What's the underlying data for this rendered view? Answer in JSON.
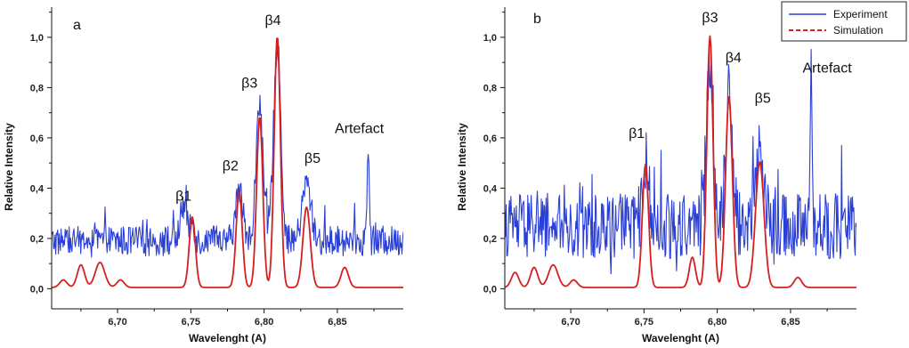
{
  "chart_data": [
    {
      "type": "line",
      "panel_label": "a",
      "xlabel": "Wavelenght (A)",
      "ylabel": "Relative Intensity",
      "xlim": [
        6.655,
        6.895
      ],
      "ylim": [
        -0.08,
        1.12
      ],
      "xticks": [
        6.7,
        6.75,
        6.8,
        6.85
      ],
      "xtick_labels": [
        "6,70",
        "6,75",
        "6,80",
        "6,85"
      ],
      "yticks": [
        0.0,
        0.2,
        0.4,
        0.6,
        0.8,
        1.0
      ],
      "ytick_labels": [
        "0,0",
        "0,2",
        "0,4",
        "0,6",
        "0,8",
        "1,0"
      ],
      "series": [
        {
          "name": "Experiment",
          "color": "#2a3fd6",
          "style": "solid",
          "peaks": [
            [
              6.745,
              0.14,
              0.0022
            ],
            [
              6.751,
              0.08,
              0.0016
            ],
            [
              6.783,
              0.2,
              0.0025
            ],
            [
              6.797,
              0.53,
              0.0025
            ],
            [
              6.809,
              0.79,
              0.0024
            ],
            [
              6.829,
              0.23,
              0.003
            ],
            [
              6.871,
              0.4,
              0.0007
            ]
          ],
          "baseline": 0.19,
          "noise": 0.06
        },
        {
          "name": "Simulation",
          "color": "#d42020",
          "style": "dashed",
          "peaks": [
            [
              6.675,
              0.09,
              0.0025
            ],
            [
              6.688,
              0.1,
              0.0032
            ],
            [
              6.702,
              0.03,
              0.0025
            ],
            [
              6.751,
              0.28,
              0.0021
            ],
            [
              6.783,
              0.38,
              0.0021
            ],
            [
              6.797,
              0.68,
              0.0021
            ],
            [
              6.809,
              1.0,
              0.0021
            ],
            [
              6.829,
              0.32,
              0.0025
            ],
            [
              6.855,
              0.08,
              0.0025
            ],
            [
              6.663,
              0.03,
              0.0025
            ]
          ],
          "baseline": 0.005
        }
      ],
      "annotations": [
        {
          "text": "β1",
          "x": 6.745,
          "y": 0.35
        },
        {
          "text": "β2",
          "x": 6.777,
          "y": 0.47
        },
        {
          "text": "β3",
          "x": 6.79,
          "y": 0.8
        },
        {
          "text": "β4",
          "x": 6.806,
          "y": 1.05
        },
        {
          "text": "β5",
          "x": 6.833,
          "y": 0.5
        },
        {
          "text": "Artefact",
          "x": 6.865,
          "y": 0.62
        }
      ]
    },
    {
      "type": "line",
      "panel_label": "b",
      "xlabel": "Wavelenght (A)",
      "ylabel": "Relative Intensity",
      "xlim": [
        6.655,
        6.895
      ],
      "ylim": [
        -0.08,
        1.12
      ],
      "xticks": [
        6.7,
        6.75,
        6.8,
        6.85
      ],
      "xtick_labels": [
        "6,70",
        "6,75",
        "6,80",
        "6,85"
      ],
      "yticks": [
        0.0,
        0.2,
        0.4,
        0.6,
        0.8,
        1.0
      ],
      "ytick_labels": [
        "0,0",
        "0,2",
        "0,4",
        "0,6",
        "0,8",
        "1,0"
      ],
      "series": [
        {
          "name": "Experiment",
          "color": "#2a3fd6",
          "style": "solid",
          "peaks": [
            [
              6.751,
              0.25,
              0.0022
            ],
            [
              6.795,
              0.68,
              0.0023
            ],
            [
              6.808,
              0.52,
              0.0025
            ],
            [
              6.829,
              0.28,
              0.003
            ],
            [
              6.864,
              0.62,
              0.0007
            ]
          ],
          "baseline": 0.25,
          "noise": 0.13
        },
        {
          "name": "Simulation",
          "color": "#d42020",
          "style": "dashed",
          "peaks": [
            [
              6.662,
              0.06,
              0.0025
            ],
            [
              6.675,
              0.08,
              0.0025
            ],
            [
              6.688,
              0.09,
              0.0032
            ],
            [
              6.702,
              0.03,
              0.0025
            ],
            [
              6.751,
              0.49,
              0.0021
            ],
            [
              6.783,
              0.12,
              0.0021
            ],
            [
              6.795,
              1.0,
              0.0021
            ],
            [
              6.808,
              0.76,
              0.0023
            ],
            [
              6.829,
              0.5,
              0.0029
            ],
            [
              6.855,
              0.04,
              0.0025
            ]
          ],
          "baseline": 0.005
        }
      ],
      "annotations": [
        {
          "text": "β1",
          "x": 6.745,
          "y": 0.6
        },
        {
          "text": "β3",
          "x": 6.795,
          "y": 1.06
        },
        {
          "text": "β4",
          "x": 6.811,
          "y": 0.9
        },
        {
          "text": "β5",
          "x": 6.831,
          "y": 0.74
        },
        {
          "text": "Artefact",
          "x": 6.875,
          "y": 0.86
        }
      ]
    }
  ],
  "legend": {
    "items": [
      {
        "label": "Experiment",
        "color": "#2a3fd6",
        "style": "solid"
      },
      {
        "label": "Simulation",
        "color": "#d42020",
        "style": "dashed"
      }
    ],
    "position": "top-right"
  }
}
